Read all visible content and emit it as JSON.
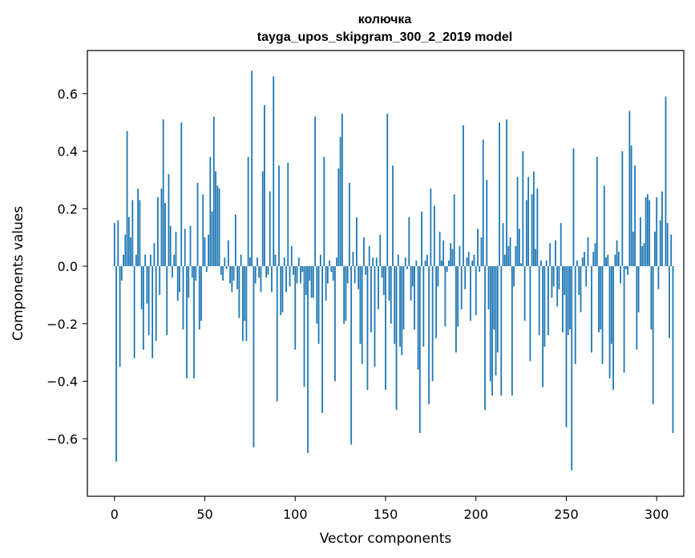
{
  "chart_data": {
    "type": "bar",
    "title": "колючка",
    "subtitle": "tayga_upos_skipgram_300_2_2019 model",
    "xlabel": "Vector components",
    "ylabel": "Components values",
    "xlim": [
      -15,
      315
    ],
    "ylim": [
      -0.8,
      0.75
    ],
    "xticks": [
      0,
      50,
      100,
      150,
      200,
      250,
      300
    ],
    "yticks": [
      -0.6,
      -0.4,
      -0.2,
      0.0,
      0.2,
      0.4,
      0.6
    ],
    "ytick_labels": [
      "−0.6",
      "−0.4",
      "−0.2",
      "0.0",
      "0.2",
      "0.4",
      "0.6"
    ],
    "bar_color": "#1f77b4",
    "values": [
      0.15,
      -0.68,
      0.16,
      -0.35,
      -0.05,
      0.04,
      0.11,
      0.47,
      0.17,
      0.1,
      0.23,
      -0.32,
      0.04,
      0.27,
      0.23,
      -0.15,
      -0.29,
      0.04,
      -0.13,
      -0.24,
      0.04,
      -0.32,
      0.08,
      -0.26,
      0.24,
      -0.1,
      0.27,
      0.51,
      0.22,
      -0.24,
      0.32,
      0.14,
      -0.04,
      0.04,
      0.12,
      -0.12,
      -0.09,
      0.5,
      -0.22,
      0.13,
      -0.39,
      -0.11,
      0.14,
      -0.04,
      -0.39,
      -0.05,
      0.29,
      -0.22,
      -0.19,
      0.25,
      0.1,
      -0.02,
      0.11,
      0.38,
      0.19,
      0.52,
      0.33,
      0.28,
      0.27,
      -0.03,
      -0.05,
      0.03,
      -0.01,
      0.09,
      -0.06,
      -0.09,
      -0.05,
      0.18,
      -0.08,
      -0.18,
      0.04,
      -0.26,
      -0.19,
      -0.26,
      0.38,
      0.03,
      0.68,
      -0.63,
      -0.06,
      0.03,
      -0.04,
      -0.09,
      0.33,
      0.56,
      -0.04,
      -0.03,
      0.26,
      -0.09,
      0.66,
      0.04,
      -0.47,
      0.35,
      -0.17,
      -0.16,
      0.03,
      -0.09,
      0.36,
      -0.07,
      0.07,
      -0.03,
      -0.29,
      -0.06,
      0.03,
      -0.06,
      -0.02,
      -0.42,
      -0.1,
      -0.65,
      -0.05,
      -0.11,
      -0.11,
      0.52,
      -0.2,
      -0.27,
      0.04,
      -0.51,
      0.38,
      -0.12,
      -0.06,
      0.02,
      -0.02,
      -0.05,
      -0.4,
      0.03,
      0.34,
      0.45,
      0.53,
      -0.2,
      -0.19,
      -0.06,
      0.29,
      -0.62,
      0.05,
      -0.06,
      0.17,
      -0.08,
      -0.27,
      -0.34,
      0.1,
      -0.03,
      -0.43,
      0.07,
      -0.23,
      0.03,
      -0.35,
      0.03,
      -0.15,
      0.11,
      -0.04,
      -0.1,
      -0.43,
      0.53,
      -0.12,
      -0.2,
      0.35,
      -0.27,
      -0.5,
      0.04,
      -0.28,
      -0.31,
      -0.22,
      0.03,
      -0.01,
      0.17,
      -0.12,
      -0.07,
      -0.22,
      0.02,
      -0.36,
      -0.58,
      0.19,
      -0.28,
      0.02,
      0.04,
      -0.48,
      0.27,
      -0.4,
      0.21,
      -0.25,
      -0.07,
      0.12,
      0.02,
      0.09,
      -0.21,
      -0.02,
      0.02,
      0.08,
      0.06,
      0.25,
      -0.3,
      -0.21,
      0.07,
      -0.15,
      0.49,
      -0.08,
      0.03,
      0.05,
      -0.19,
      0.02,
      0.04,
      -0.17,
      0.13,
      -0.02,
      0.1,
      0.44,
      -0.5,
      0.3,
      -0.15,
      -0.4,
      -0.45,
      -0.22,
      -0.38,
      -0.3,
      0.5,
      -0.45,
      0.15,
      0.04,
      0.51,
      0.07,
      0.1,
      -0.45,
      -0.07,
      0.07,
      0.31,
      0.13,
      0.01,
      0.4,
      -0.19,
      0.23,
      0.31,
      -0.33,
      0.25,
      0.33,
      0.06,
      0.27,
      -0.24,
      0.02,
      -0.42,
      -0.28,
      0.02,
      -0.24,
      0.08,
      -0.11,
      -0.07,
      0.09,
      -0.14,
      -0.08,
      0.15,
      -0.23,
      -0.1,
      -0.56,
      -0.24,
      -0.22,
      -0.71,
      0.41,
      -0.34,
      0.02,
      -0.1,
      -0.16,
      0.03,
      0.05,
      -0.07,
      0.1,
      0.0,
      -0.3,
      0.05,
      0.08,
      0.38,
      -0.23,
      -0.22,
      -0.34,
      0.28,
      0.03,
      0.04,
      -0.39,
      -0.27,
      -0.43,
      0.04,
      0.09,
      0.05,
      -0.06,
      0.4,
      -0.37,
      -0.01,
      -0.03,
      0.54,
      0.42,
      0.12,
      0.35,
      -0.29,
      -0.16,
      0.17,
      0.07,
      0.08,
      0.24,
      0.25,
      0.23,
      -0.22,
      -0.48,
      0.12,
      0.24,
      -0.08,
      0.16,
      0.26,
      0.0,
      0.59,
      0.15,
      -0.25,
      0.11,
      -0.58,
      0.0
    ]
  }
}
